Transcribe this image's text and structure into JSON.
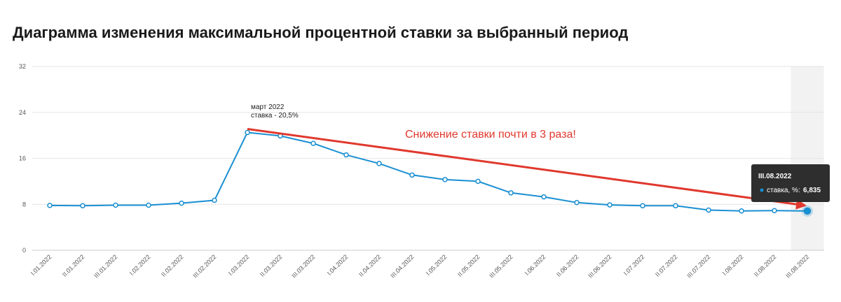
{
  "page": {
    "title": "Диаграмма изменения максимальной процентной ставки за выбранный период"
  },
  "chart_data": {
    "type": "line",
    "categories": [
      "I.01.2022",
      "II.01.2022",
      "III.01.2022",
      "I.02.2022",
      "II.02.2022",
      "III.02.2022",
      "I.03.2022",
      "II.03.2022",
      "III.03.2022",
      "I.04.2022",
      "II.04.2022",
      "III.04.2022",
      "I.05.2022",
      "II.05.2022",
      "III.05.2022",
      "I.06.2022",
      "II.06.2022",
      "III.06.2022",
      "I.07.2022",
      "II.07.2022",
      "III.07.2022",
      "I.08.2022",
      "II.08.2022",
      "III.08.2022"
    ],
    "series": [
      {
        "name": "ставка, %",
        "values": [
          7.8,
          7.75,
          7.85,
          7.85,
          8.2,
          8.7,
          20.5,
          19.9,
          18.6,
          16.6,
          15.1,
          13.1,
          12.3,
          12.0,
          10.0,
          9.3,
          8.3,
          7.9,
          7.75,
          7.75,
          7.0,
          6.85,
          6.9,
          6.835
        ],
        "color": "#1a8fd1"
      }
    ],
    "yticks": [
      0,
      8,
      16,
      24,
      32
    ],
    "ylim": [
      0,
      32
    ],
    "grid": true,
    "xlabel": "",
    "ylabel": "",
    "highlighted_category": "III.08.2022",
    "annotations": {
      "peak_line1": "март 2022",
      "peak_line2": "ставка - 20,5%",
      "callout": "Снижение ставки почти в 3 раза!",
      "arrow_color": "#e0382d"
    },
    "tooltip": {
      "title": "III.08.2022",
      "label": "ставка, %:",
      "value": "6,835"
    }
  }
}
